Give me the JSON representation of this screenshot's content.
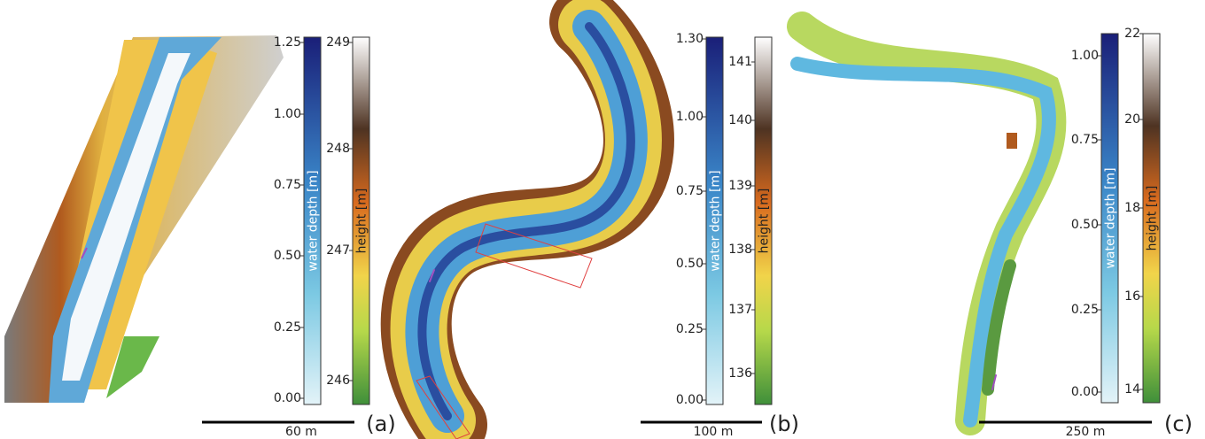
{
  "panels": [
    {
      "label": "(a)",
      "scale_bar": "60 m",
      "depth_bar": {
        "title": "water depth [m]",
        "ticks": [
          "1.25",
          "1.00",
          "0.75",
          "0.50",
          "0.25",
          "0.00"
        ]
      },
      "height_bar": {
        "title": "height [m]",
        "ticks": [
          "249",
          "248",
          "247",
          "246"
        ]
      }
    },
    {
      "label": "(b)",
      "scale_bar": "100 m",
      "depth_bar": {
        "title": "water depth [m]",
        "ticks": [
          "1.30",
          "1.00",
          "0.75",
          "0.50",
          "0.25",
          "0.00"
        ]
      },
      "height_bar": {
        "title": "height [m]",
        "ticks": [
          "141",
          "140",
          "139",
          "138",
          "137",
          "136"
        ]
      }
    },
    {
      "label": "(c)",
      "scale_bar": "250 m",
      "depth_bar": {
        "title": "water depth [m]",
        "ticks": [
          "1.00",
          "0.75",
          "0.50",
          "0.25",
          "0.00"
        ]
      },
      "height_bar": {
        "title": "height [m]",
        "ticks": [
          "22",
          "20",
          "18",
          "16",
          "14"
        ]
      }
    }
  ]
}
